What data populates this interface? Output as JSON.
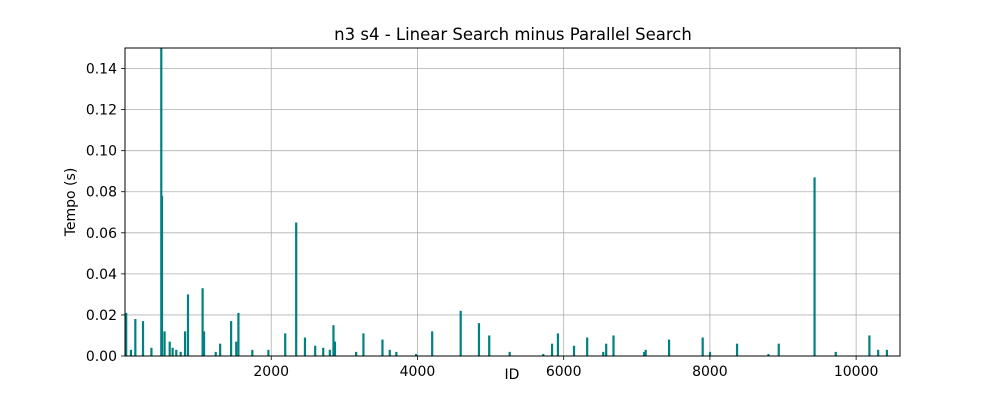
{
  "chart_data": {
    "type": "bar",
    "title": "n3 s4 - Linear Search minus Parallel Search",
    "xlabel": "ID",
    "ylabel": "Tempo (s)",
    "xlim": [
      0,
      10600
    ],
    "ylim": [
      0,
      0.15
    ],
    "x_ticks": [
      2000,
      4000,
      6000,
      8000,
      10000
    ],
    "x_tick_labels": [
      "2000",
      "4000",
      "6000",
      "8000",
      "10000"
    ],
    "y_ticks": [
      0.0,
      0.02,
      0.04,
      0.06,
      0.08,
      0.1,
      0.12,
      0.14
    ],
    "y_tick_labels": [
      "0.00",
      "0.02",
      "0.04",
      "0.06",
      "0.08",
      "0.10",
      "0.12",
      "0.14"
    ],
    "grid": true,
    "color": "#008080",
    "series": [
      {
        "x": [
          15,
          80,
          140,
          245,
          360,
          495,
          505,
          540,
          610,
          650,
          700,
          760,
          820,
          860,
          1060,
          1080,
          1240,
          1300,
          1450,
          1520,
          1550,
          1740,
          1960,
          2190,
          2340,
          2460,
          2600,
          2710,
          2800,
          2850,
          2870,
          3160,
          3260,
          3520,
          3620,
          3710,
          3980,
          4200,
          4590,
          4840,
          4980,
          5260,
          5720,
          5840,
          5920,
          6140,
          6320,
          6540,
          6580,
          6680,
          7100,
          7120,
          7440,
          7900,
          8000,
          8370,
          8800,
          8940,
          9430,
          9720,
          10180,
          10300,
          10420
        ],
        "values": [
          0.021,
          0.003,
          0.018,
          0.017,
          0.004,
          0.15,
          0.078,
          0.012,
          0.007,
          0.004,
          0.003,
          0.002,
          0.012,
          0.03,
          0.033,
          0.012,
          0.002,
          0.006,
          0.017,
          0.007,
          0.021,
          0.003,
          0.003,
          0.011,
          0.065,
          0.009,
          0.005,
          0.004,
          0.003,
          0.015,
          0.007,
          0.002,
          0.011,
          0.008,
          0.003,
          0.002,
          0.001,
          0.012,
          0.022,
          0.016,
          0.01,
          0.002,
          0.001,
          0.006,
          0.011,
          0.005,
          0.009,
          0.002,
          0.006,
          0.01,
          0.002,
          0.003,
          0.008,
          0.009,
          0.002,
          0.006,
          0.001,
          0.006,
          0.087,
          0.002,
          0.01,
          0.003,
          0.003
        ]
      }
    ]
  }
}
